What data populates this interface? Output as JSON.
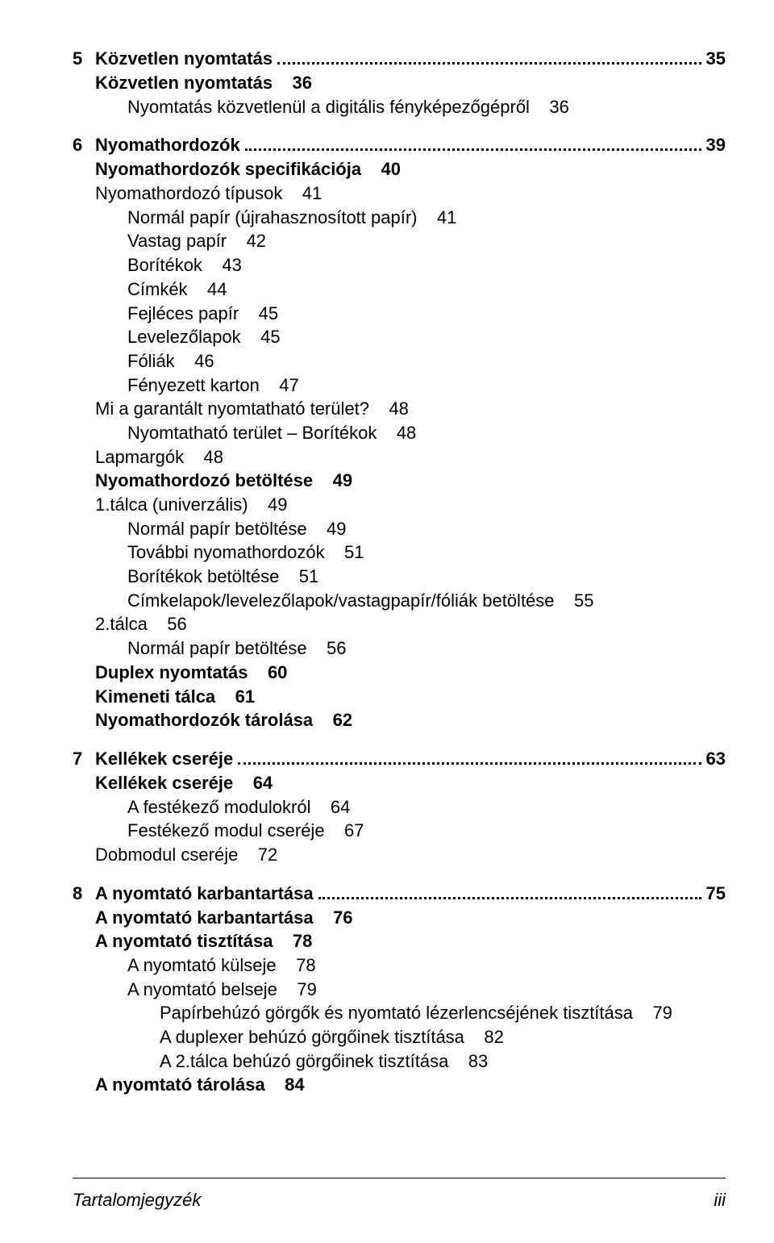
{
  "font_family": "Arial, Helvetica, sans-serif",
  "text_color": "#000000",
  "background_color": "#ffffff",
  "base_font_size_pt": 16,
  "chapters": [
    {
      "num": "5",
      "title": "Közvetlen nyomtatás",
      "page": "35",
      "lines": [
        {
          "indent": 1,
          "bold": true,
          "text": "Közvetlen nyomtatás    36"
        },
        {
          "indent": 2,
          "bold": false,
          "text": "Nyomtatás közvetlenül a digitális fényképezőgépről    36"
        }
      ]
    },
    {
      "num": "6",
      "title": "Nyomathordozók",
      "page": "39",
      "lines": [
        {
          "indent": 1,
          "bold": true,
          "text": "Nyomathordozók specifikációja    40"
        },
        {
          "indent": 1,
          "bold": false,
          "text": "Nyomathordozó típusok    41"
        },
        {
          "indent": 2,
          "bold": false,
          "text": "Normál papír (újrahasznosított papír)    41"
        },
        {
          "indent": 2,
          "bold": false,
          "text": "Vastag papír    42"
        },
        {
          "indent": 2,
          "bold": false,
          "text": "Borítékok    43"
        },
        {
          "indent": 2,
          "bold": false,
          "text": "Címkék    44"
        },
        {
          "indent": 2,
          "bold": false,
          "text": "Fejléces papír    45"
        },
        {
          "indent": 2,
          "bold": false,
          "text": "Levelezőlapok    45"
        },
        {
          "indent": 2,
          "bold": false,
          "text": "Fóliák    46"
        },
        {
          "indent": 2,
          "bold": false,
          "text": "Fényezett karton    47"
        },
        {
          "indent": 1,
          "bold": false,
          "text": "Mi a garantált nyomtatható terület?    48"
        },
        {
          "indent": 2,
          "bold": false,
          "text": "Nyomtatható terület – Borítékok    48"
        },
        {
          "indent": 1,
          "bold": false,
          "text": "Lapmargók    48"
        },
        {
          "indent": 1,
          "bold": true,
          "text": "Nyomathordozó betöltése    49"
        },
        {
          "indent": 1,
          "bold": false,
          "text": "1.tálca (univerzális)    49"
        },
        {
          "indent": 2,
          "bold": false,
          "text": "Normál papír betöltése    49"
        },
        {
          "indent": 2,
          "bold": false,
          "text": "További nyomathordozók    51"
        },
        {
          "indent": 2,
          "bold": false,
          "text": "Borítékok betöltése    51"
        },
        {
          "indent": 2,
          "bold": false,
          "text": "Címkelapok/levelezőlapok/vastagpapír/fóliák betöltése    55"
        },
        {
          "indent": 1,
          "bold": false,
          "text": "2.tálca    56"
        },
        {
          "indent": 2,
          "bold": false,
          "text": "Normál papír betöltése    56"
        },
        {
          "indent": 1,
          "bold": true,
          "text": "Duplex nyomtatás    60"
        },
        {
          "indent": 1,
          "bold": true,
          "text": "Kimeneti tálca    61"
        },
        {
          "indent": 1,
          "bold": true,
          "text": "Nyomathordozók tárolása    62"
        }
      ]
    },
    {
      "num": "7",
      "title": "Kellékek cseréje",
      "page": "63",
      "lines": [
        {
          "indent": 1,
          "bold": true,
          "text": "Kellékek cseréje    64"
        },
        {
          "indent": 2,
          "bold": false,
          "text": "A festékező modulokról    64"
        },
        {
          "indent": 2,
          "bold": false,
          "text": "Festékező modul cseréje    67"
        },
        {
          "indent": 1,
          "bold": false,
          "text": "Dobmodul cseréje    72"
        }
      ]
    },
    {
      "num": "8",
      "title": "A nyomtató karbantartása",
      "page": "75",
      "lines": [
        {
          "indent": 1,
          "bold": true,
          "text": "A nyomtató karbantartása    76"
        },
        {
          "indent": 1,
          "bold": true,
          "text": "A nyomtató tisztítása    78"
        },
        {
          "indent": 2,
          "bold": false,
          "text": "A nyomtató külseje    78"
        },
        {
          "indent": 2,
          "bold": false,
          "text": "A nyomtató belseje    79"
        },
        {
          "indent": 3,
          "bold": false,
          "text": "Papírbehúzó görgők és nyomtató lézerlencséjének tisztítása    79"
        },
        {
          "indent": 3,
          "bold": false,
          "text": "A duplexer behúzó görgőinek tisztítása    82"
        },
        {
          "indent": 3,
          "bold": false,
          "text": "A 2.tálca behúzó görgőinek tisztítása    83"
        },
        {
          "indent": 1,
          "bold": true,
          "text": "A nyomtató tárolása    84"
        }
      ]
    }
  ],
  "footer": {
    "left": "Tartalomjegyzék",
    "right": "iii"
  }
}
